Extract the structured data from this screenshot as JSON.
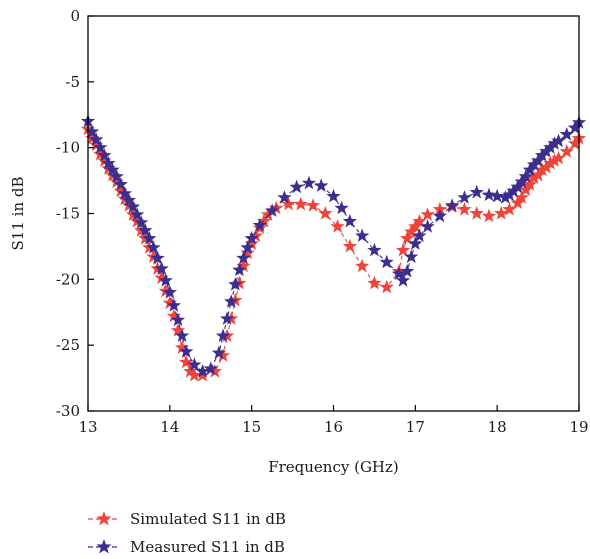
{
  "chart_data": {
    "type": "line",
    "title": "",
    "xlabel": "Frequency (GHz)",
    "ylabel": "S11 in dB",
    "xlim": [
      13,
      19
    ],
    "ylim": [
      -30,
      0
    ],
    "xticks": [
      "13",
      "14",
      "15",
      "16",
      "17",
      "18",
      "19"
    ],
    "yticks": [
      "0",
      "-5",
      "-10",
      "-15",
      "-20",
      "-25",
      "-30"
    ],
    "grid": false,
    "legend_position": "bottom-left",
    "series": [
      {
        "name": "Simulated S11 in dB",
        "color": "#f0443a",
        "marker": "star",
        "line_style": "dashed",
        "x": [
          13.0,
          13.05,
          13.1,
          13.15,
          13.2,
          13.25,
          13.3,
          13.35,
          13.4,
          13.45,
          13.5,
          13.55,
          13.6,
          13.65,
          13.7,
          13.75,
          13.8,
          13.85,
          13.9,
          13.95,
          14.0,
          14.05,
          14.1,
          14.15,
          14.2,
          14.25,
          14.3,
          14.4,
          14.55,
          14.65,
          14.7,
          14.75,
          14.8,
          14.85,
          14.9,
          14.95,
          15.0,
          15.05,
          15.1,
          15.15,
          15.2,
          15.3,
          15.45,
          15.6,
          15.75,
          15.9,
          16.05,
          16.2,
          16.35,
          16.5,
          16.65,
          16.8,
          16.85,
          16.9,
          16.95,
          17.0,
          17.05,
          17.15,
          17.3,
          17.45,
          17.6,
          17.75,
          17.9,
          18.05,
          18.15,
          18.25,
          18.3,
          18.35,
          18.4,
          18.45,
          18.5,
          18.55,
          18.6,
          18.65,
          18.7,
          18.75,
          18.85,
          18.95,
          19.0
        ],
        "y": [
          -8.6,
          -9.3,
          -9.8,
          -10.5,
          -11.0,
          -11.6,
          -12.1,
          -12.6,
          -13.3,
          -13.9,
          -14.4,
          -15.1,
          -15.6,
          -16.3,
          -16.9,
          -17.6,
          -18.3,
          -19.2,
          -19.9,
          -20.9,
          -21.8,
          -22.8,
          -23.9,
          -25.2,
          -26.3,
          -27.0,
          -27.3,
          -27.3,
          -27.0,
          -25.8,
          -24.3,
          -23.0,
          -21.6,
          -20.3,
          -19.0,
          -18.0,
          -17.3,
          -16.7,
          -16.1,
          -15.6,
          -15.1,
          -14.6,
          -14.3,
          -14.3,
          -14.4,
          -15.0,
          -16.0,
          -17.5,
          -19.0,
          -20.3,
          -20.6,
          -19.4,
          -17.8,
          -16.9,
          -16.4,
          -16.0,
          -15.6,
          -15.1,
          -14.7,
          -14.5,
          -14.7,
          -15.0,
          -15.2,
          -15.0,
          -14.7,
          -14.2,
          -13.8,
          -13.2,
          -12.8,
          -12.3,
          -12.1,
          -11.7,
          -11.5,
          -11.2,
          -11.0,
          -10.8,
          -10.3,
          -9.7,
          -9.3
        ]
      },
      {
        "name": "Measured S11 in dB",
        "color": "#3b2e8f",
        "marker": "star",
        "line_style": "dashed",
        "x": [
          13.0,
          13.05,
          13.1,
          13.15,
          13.2,
          13.25,
          13.3,
          13.35,
          13.4,
          13.45,
          13.5,
          13.55,
          13.6,
          13.65,
          13.7,
          13.75,
          13.8,
          13.85,
          13.9,
          13.95,
          14.0,
          14.05,
          14.1,
          14.15,
          14.2,
          14.3,
          14.4,
          14.5,
          14.6,
          14.65,
          14.7,
          14.75,
          14.8,
          14.85,
          14.9,
          14.95,
          15.0,
          15.1,
          15.25,
          15.4,
          15.55,
          15.7,
          15.85,
          16.0,
          16.1,
          16.2,
          16.35,
          16.5,
          16.65,
          16.8,
          16.85,
          16.9,
          16.95,
          17.0,
          17.05,
          17.15,
          17.3,
          17.45,
          17.6,
          17.75,
          17.9,
          18.0,
          18.1,
          18.15,
          18.2,
          18.25,
          18.3,
          18.35,
          18.4,
          18.45,
          18.5,
          18.55,
          18.6,
          18.65,
          18.7,
          18.75,
          18.85,
          18.95,
          19.0
        ],
        "y": [
          -8.0,
          -8.8,
          -9.4,
          -10.0,
          -10.6,
          -11.2,
          -11.7,
          -12.2,
          -12.8,
          -13.5,
          -14.0,
          -14.5,
          -15.1,
          -15.7,
          -16.3,
          -16.9,
          -17.6,
          -18.4,
          -19.2,
          -20.1,
          -21.0,
          -22.0,
          -23.1,
          -24.3,
          -25.5,
          -26.5,
          -27.0,
          -26.8,
          -25.6,
          -24.3,
          -23.0,
          -21.7,
          -20.4,
          -19.3,
          -18.4,
          -17.6,
          -16.9,
          -15.9,
          -14.8,
          -13.8,
          -13.0,
          -12.7,
          -12.9,
          -13.7,
          -14.6,
          -15.6,
          -16.7,
          -17.8,
          -18.7,
          -19.6,
          -20.1,
          -19.4,
          -18.3,
          -17.3,
          -16.7,
          -16.0,
          -15.2,
          -14.4,
          -13.8,
          -13.4,
          -13.6,
          -13.7,
          -13.8,
          -13.6,
          -13.3,
          -13.0,
          -12.6,
          -12.2,
          -11.7,
          -11.3,
          -11.0,
          -10.6,
          -10.3,
          -10.0,
          -9.7,
          -9.5,
          -9.0,
          -8.5,
          -8.1
        ]
      }
    ]
  }
}
